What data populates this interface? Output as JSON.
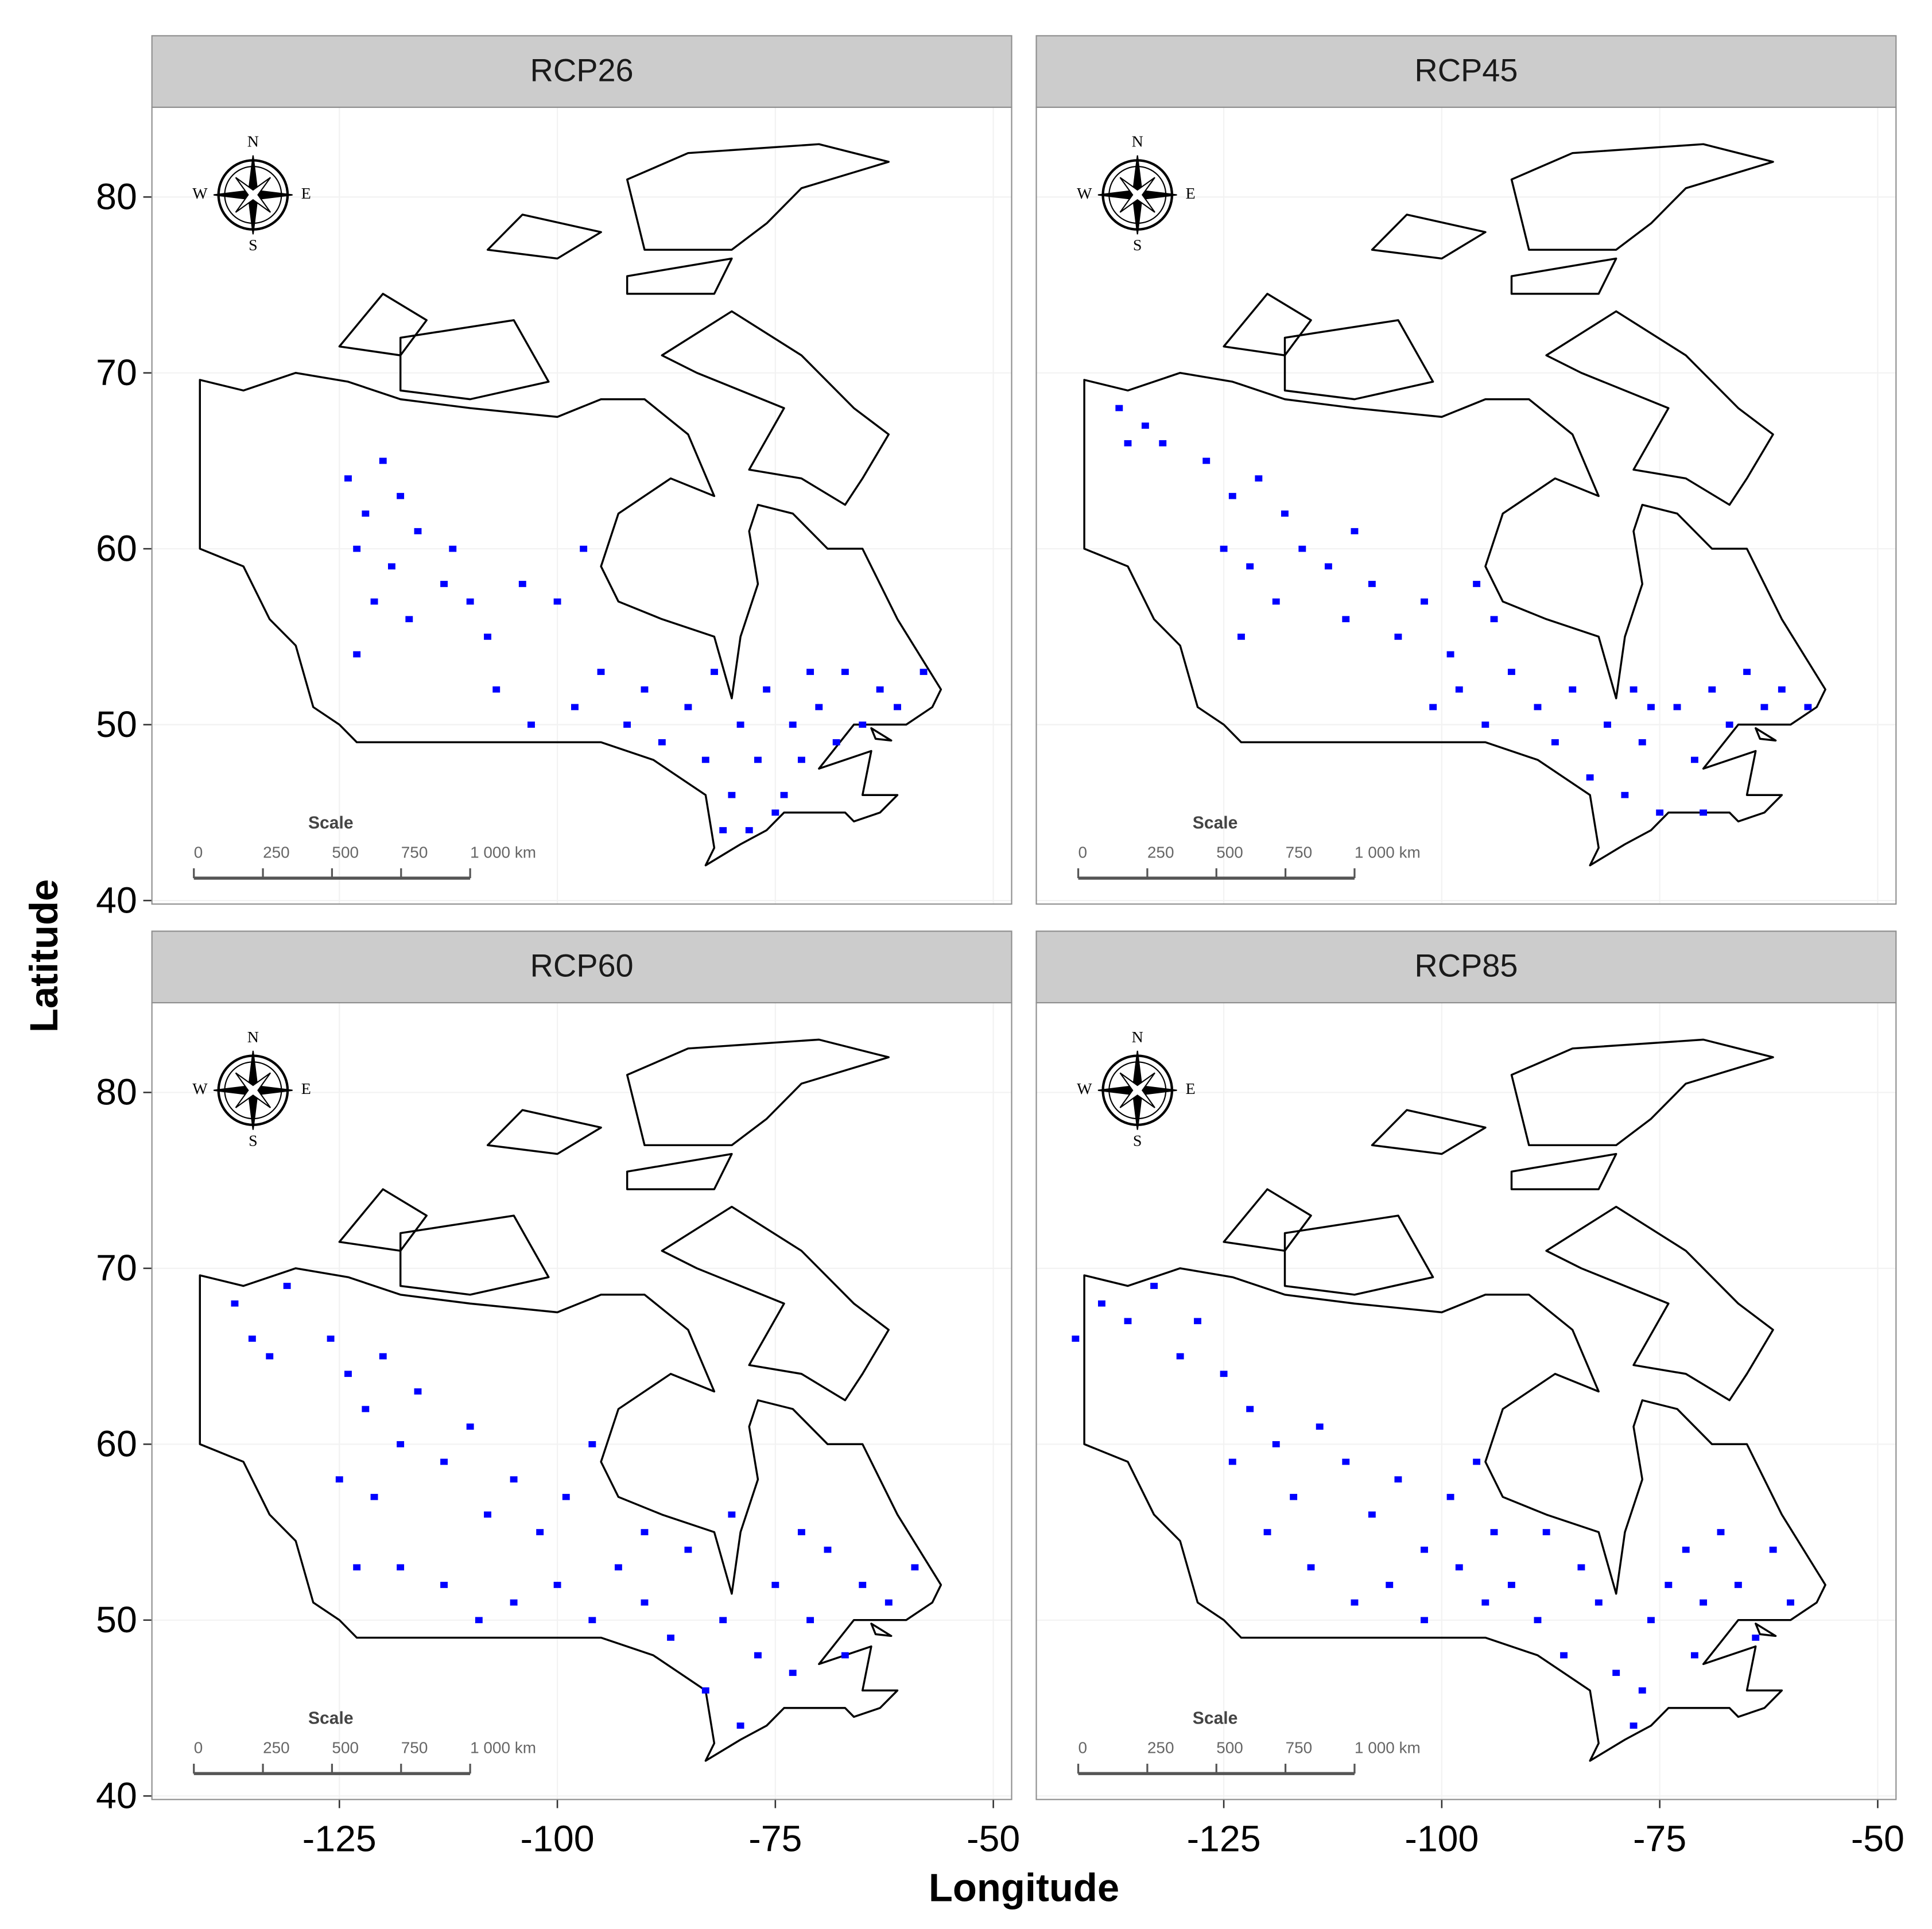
{
  "axis_titles": {
    "x": "Longitude",
    "y": "Latitude"
  },
  "chart_data": [
    {
      "type": "scatter",
      "title": "RCP26",
      "color": "#0000ff",
      "x": [
        -124,
        -122,
        -120,
        -118,
        -123,
        -119,
        -116,
        -121,
        -117,
        -113,
        -110,
        -108,
        -112,
        -104,
        -100,
        -97,
        -123,
        -107,
        -103,
        -98,
        -95,
        -92,
        -90,
        -88,
        -85,
        -83,
        -82,
        -80,
        -79,
        -78,
        -77,
        -76,
        -74,
        -73,
        -72,
        -70,
        -68,
        -67,
        -65,
        -63,
        -61,
        -58,
        -75,
        -81,
        -71
      ],
      "y": [
        64,
        62,
        65,
        63,
        60,
        59,
        61,
        57,
        56,
        58,
        57,
        55,
        60,
        58,
        57,
        60,
        54,
        52,
        50,
        51,
        53,
        50,
        52,
        49,
        51,
        48,
        53,
        46,
        50,
        44,
        48,
        52,
        46,
        50,
        48,
        51,
        49,
        53,
        50,
        52,
        51,
        53,
        45,
        44,
        53
      ],
      "xlim": [
        -146.5,
        -47.9
      ],
      "ylim": [
        39.8,
        85.1
      ],
      "xticks": [
        -125,
        -100,
        -75,
        -50
      ],
      "yticks": [
        40,
        50,
        60,
        70,
        80
      ],
      "compass": [
        "N",
        "E",
        "S",
        "W"
      ],
      "scale_title": "Scale",
      "scale_labels": [
        "0",
        "250",
        "500",
        "750",
        "1 000 km"
      ]
    },
    {
      "type": "scatter",
      "title": "RCP45",
      "color": "#0000ff",
      "x": [
        -137,
        -134,
        -132,
        -136,
        -127,
        -124,
        -121,
        -118,
        -125,
        -122,
        -119,
        -116,
        -113,
        -111,
        -108,
        -105,
        -102,
        -99,
        -96,
        -94,
        -101,
        -98,
        -95,
        -92,
        -89,
        -87,
        -85,
        -83,
        -81,
        -79,
        -77,
        -75,
        -73,
        -71,
        -69,
        -67,
        -65,
        -63,
        -61,
        -58,
        -70,
        -78,
        -123,
        -110,
        -76
      ],
      "y": [
        68,
        67,
        66,
        66,
        65,
        63,
        64,
        62,
        60,
        59,
        57,
        60,
        59,
        56,
        58,
        55,
        57,
        54,
        58,
        56,
        51,
        52,
        50,
        53,
        51,
        49,
        52,
        47,
        50,
        46,
        49,
        45,
        51,
        48,
        52,
        50,
        53,
        51,
        52,
        51,
        45,
        52,
        55,
        61,
        51
      ],
      "xlim": [
        -146.5,
        -47.9
      ],
      "ylim": [
        39.8,
        85.1
      ],
      "xticks": [
        -125,
        -100,
        -75,
        -50
      ],
      "yticks": [
        40,
        50,
        60,
        70,
        80
      ],
      "compass": [
        "N",
        "E",
        "S",
        "W"
      ],
      "scale_title": "Scale",
      "scale_labels": [
        "0",
        "250",
        "500",
        "750",
        "1 000 km"
      ]
    },
    {
      "type": "scatter",
      "title": "RCP60",
      "color": "#0000ff",
      "x": [
        -137,
        -135,
        -133,
        -131,
        -126,
        -124,
        -122,
        -120,
        -118,
        -125,
        -121,
        -116,
        -113,
        -110,
        -108,
        -105,
        -102,
        -99,
        -96,
        -123,
        -118,
        -113,
        -109,
        -105,
        -100,
        -96,
        -93,
        -90,
        -87,
        -85,
        -83,
        -81,
        -79,
        -77,
        -75,
        -73,
        -71,
        -69,
        -67,
        -65,
        -62,
        -59,
        -80,
        -90,
        -72
      ],
      "y": [
        68,
        66,
        65,
        69,
        66,
        64,
        62,
        65,
        60,
        58,
        57,
        63,
        59,
        61,
        56,
        58,
        55,
        57,
        60,
        53,
        53,
        52,
        50,
        51,
        52,
        50,
        53,
        51,
        49,
        54,
        46,
        50,
        44,
        48,
        52,
        47,
        50,
        54,
        48,
        52,
        51,
        53,
        56,
        55,
        55
      ],
      "xlim": [
        -146.5,
        -47.9
      ],
      "ylim": [
        39.8,
        85.1
      ],
      "xticks": [
        -125,
        -100,
        -75,
        -50
      ],
      "yticks": [
        40,
        50,
        60,
        70,
        80
      ],
      "compass": [
        "N",
        "E",
        "S",
        "W"
      ],
      "scale_title": "Scale",
      "scale_labels": [
        "0",
        "250",
        "500",
        "750",
        "1 000 km"
      ]
    },
    {
      "type": "scatter",
      "title": "RCP85",
      "color": "#0000ff",
      "x": [
        -142,
        -139,
        -136,
        -133,
        -130,
        -128,
        -125,
        -122,
        -119,
        -124,
        -117,
        -114,
        -111,
        -108,
        -105,
        -102,
        -99,
        -96,
        -120,
        -115,
        -110,
        -106,
        -102,
        -98,
        -95,
        -92,
        -89,
        -86,
        -84,
        -82,
        -80,
        -78,
        -76,
        -74,
        -72,
        -70,
        -68,
        -66,
        -64,
        -62,
        -60,
        -88,
        -77,
        -71,
        -94
      ],
      "y": [
        66,
        68,
        67,
        69,
        65,
        67,
        64,
        62,
        60,
        59,
        57,
        61,
        59,
        56,
        58,
        54,
        57,
        59,
        55,
        53,
        51,
        52,
        50,
        53,
        51,
        52,
        50,
        48,
        53,
        51,
        47,
        44,
        50,
        52,
        54,
        51,
        55,
        52,
        49,
        54,
        51,
        55,
        46,
        48,
        55
      ],
      "xlim": [
        -146.5,
        -47.9
      ],
      "ylim": [
        39.8,
        85.1
      ],
      "xticks": [
        -125,
        -100,
        -75,
        -50
      ],
      "yticks": [
        40,
        50,
        60,
        70,
        80
      ],
      "compass": [
        "N",
        "E",
        "S",
        "W"
      ],
      "scale_title": "Scale",
      "scale_labels": [
        "0",
        "250",
        "500",
        "750",
        "1 000 km"
      ]
    }
  ]
}
